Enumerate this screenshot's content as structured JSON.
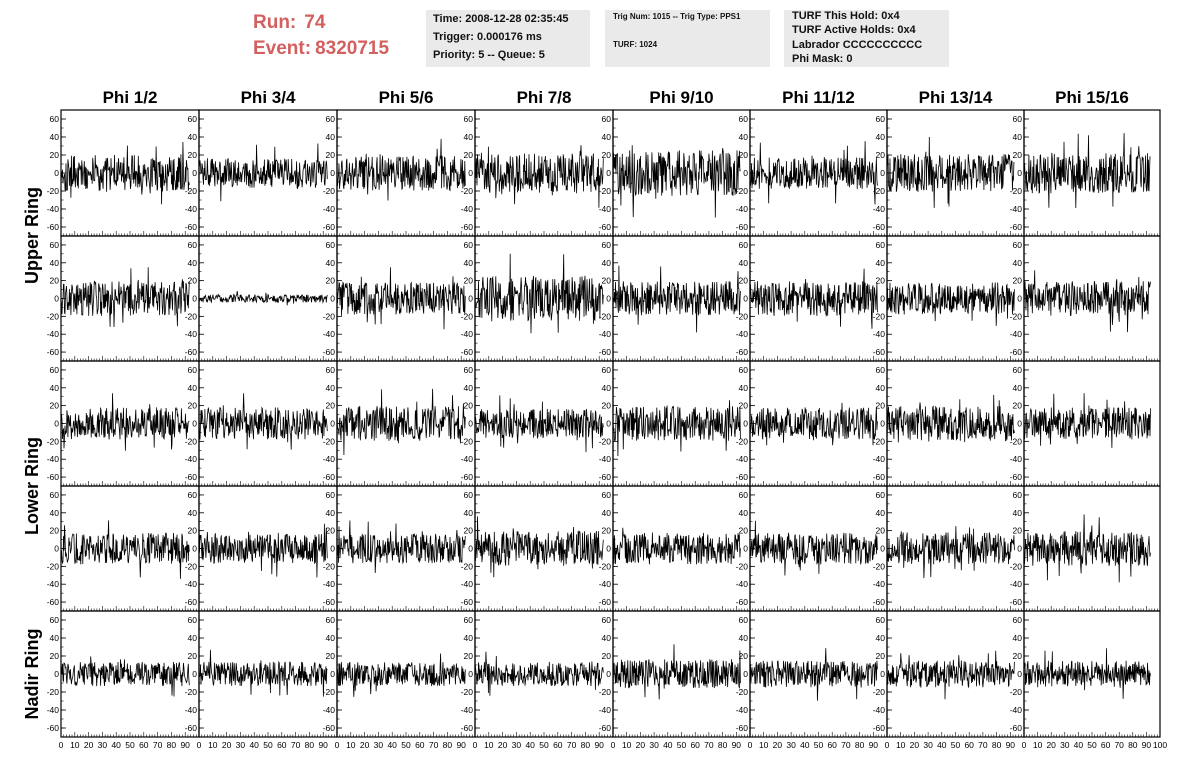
{
  "run_info": {
    "run_label": "Run:",
    "run_value": "74",
    "event_label": "Event:",
    "event_value": "8320715"
  },
  "header_boxes": {
    "time_box": {
      "time": "Time: 2008-12-28 02:35:45",
      "trigger": "Trigger: 0.000176 ms",
      "priority": "Priority: 5 -- Queue: 5"
    },
    "trig_box": {
      "trig": "Trig Num: 1015 -- Trig Type: PPS1",
      "turf": "TURF: 1024"
    },
    "turf_box": {
      "this_hold": "TURF This Hold: 0x4",
      "active_holds": "TURF Active Holds: 0x4",
      "labrador": "Labrador CCCCCCCCCC",
      "phi_mask": "Phi Mask: 0"
    }
  },
  "chart_data": {
    "type": "line",
    "colors": {
      "trace": "#000000",
      "frame": "#000000",
      "run_text": "#d35f5f",
      "box_bg": "#eaeaea"
    },
    "column_titles": [
      "Phi 1/2",
      "Phi 3/4",
      "Phi 5/6",
      "Phi 7/8",
      "Phi 9/10",
      "Phi 11/12",
      "Phi 13/14",
      "Phi 15/16"
    ],
    "row_groups": [
      {
        "label": "Upper Ring",
        "rows": [
          0,
          1
        ]
      },
      {
        "label": "Lower Ring",
        "rows": [
          2,
          3
        ]
      },
      {
        "label": "Nadir Ring",
        "rows": [
          4
        ]
      }
    ],
    "xlim": [
      0,
      100
    ],
    "x_ticks": [
      0,
      10,
      20,
      30,
      40,
      50,
      60,
      70,
      80,
      90,
      100
    ],
    "ylim": [
      -70,
      70
    ],
    "y_ticks": [
      -60,
      -40,
      -20,
      0,
      20,
      40,
      60
    ],
    "samples_per_trace": 260,
    "trace_span": [
      0,
      93
    ],
    "amplitudes": [
      [
        14,
        11,
        13,
        15,
        17,
        12,
        14,
        15
      ],
      [
        13,
        3,
        12,
        17,
        13,
        13,
        12,
        13
      ],
      [
        12,
        12,
        13,
        11,
        13,
        12,
        13,
        12
      ],
      [
        12,
        11,
        11,
        13,
        12,
        12,
        12,
        13
      ],
      [
        9,
        9,
        9,
        9,
        11,
        10,
        10,
        10
      ]
    ],
    "trace_seeds": [
      [
        101,
        102,
        103,
        104,
        105,
        106,
        107,
        108
      ],
      [
        201,
        202,
        203,
        204,
        205,
        206,
        207,
        208
      ],
      [
        301,
        302,
        303,
        304,
        305,
        306,
        307,
        308
      ],
      [
        401,
        402,
        403,
        404,
        405,
        406,
        407,
        408
      ],
      [
        501,
        502,
        503,
        504,
        505,
        506,
        507,
        508
      ]
    ]
  }
}
